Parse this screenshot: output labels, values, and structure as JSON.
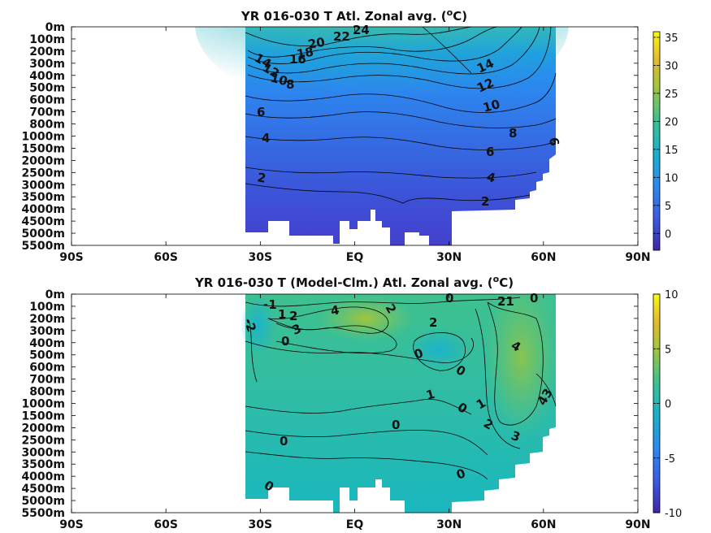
{
  "chart_data": [
    {
      "type": "heatmap",
      "title": "YR 016-030 T Atl. Zonal avg. (",
      "title_unit_sup": "o",
      "title_unit_tail": "C)",
      "x_ticks": [
        "90S",
        "60S",
        "30S",
        "EQ",
        "30N",
        "60N",
        "90N"
      ],
      "y_ticks": [
        "0m",
        "100m",
        "200m",
        "300m",
        "400m",
        "500m",
        "600m",
        "700m",
        "800m",
        "1000m",
        "1500m",
        "2000m",
        "2500m",
        "3000m",
        "3500m",
        "4000m",
        "4500m",
        "5000m",
        "5500m"
      ],
      "colorbar": {
        "ticks": [
          "35",
          "30",
          "25",
          "20",
          "15",
          "10",
          "5",
          "0"
        ],
        "range": [
          -3,
          36
        ]
      },
      "contour_labels": [
        "24",
        "22",
        "20",
        "18",
        "16",
        "14",
        "12",
        "10",
        "8",
        "6",
        "4",
        "2",
        "14",
        "12",
        "10",
        "8",
        "6",
        "4",
        "2",
        "6"
      ],
      "colors": {
        "low": "#3e26a8",
        "mid": "#1fb3c4",
        "high": "#f9fb0e"
      }
    },
    {
      "type": "heatmap",
      "title": "YR 016-030 T (Model-Clm.) Atl. Zonal avg. (",
      "title_unit_sup": "o",
      "title_unit_tail": "C)",
      "x_ticks": [
        "90S",
        "60S",
        "30S",
        "EQ",
        "30N",
        "60N",
        "90N"
      ],
      "y_ticks": [
        "0m",
        "100m",
        "200m",
        "300m",
        "400m",
        "500m",
        "600m",
        "700m",
        "800m",
        "1000m",
        "1500m",
        "2000m",
        "2500m",
        "3000m",
        "3500m",
        "4000m",
        "4500m",
        "5000m",
        "5500m"
      ],
      "colorbar": {
        "ticks": [
          "10",
          "5",
          "0",
          "-5",
          "-10"
        ],
        "range": [
          -10,
          10
        ]
      },
      "contour_labels": [
        "-1",
        "1",
        "2",
        "3",
        "0",
        "4",
        "2",
        "0",
        "2",
        "21",
        "0",
        "0",
        "0",
        "4",
        "1",
        "0",
        "1",
        "0",
        "2",
        "3",
        "43",
        "0",
        "0",
        "0",
        "-2"
      ],
      "colors": {
        "low": "#3e26a8",
        "mid": "#1fb3c4",
        "high": "#f9fb0e"
      }
    }
  ]
}
